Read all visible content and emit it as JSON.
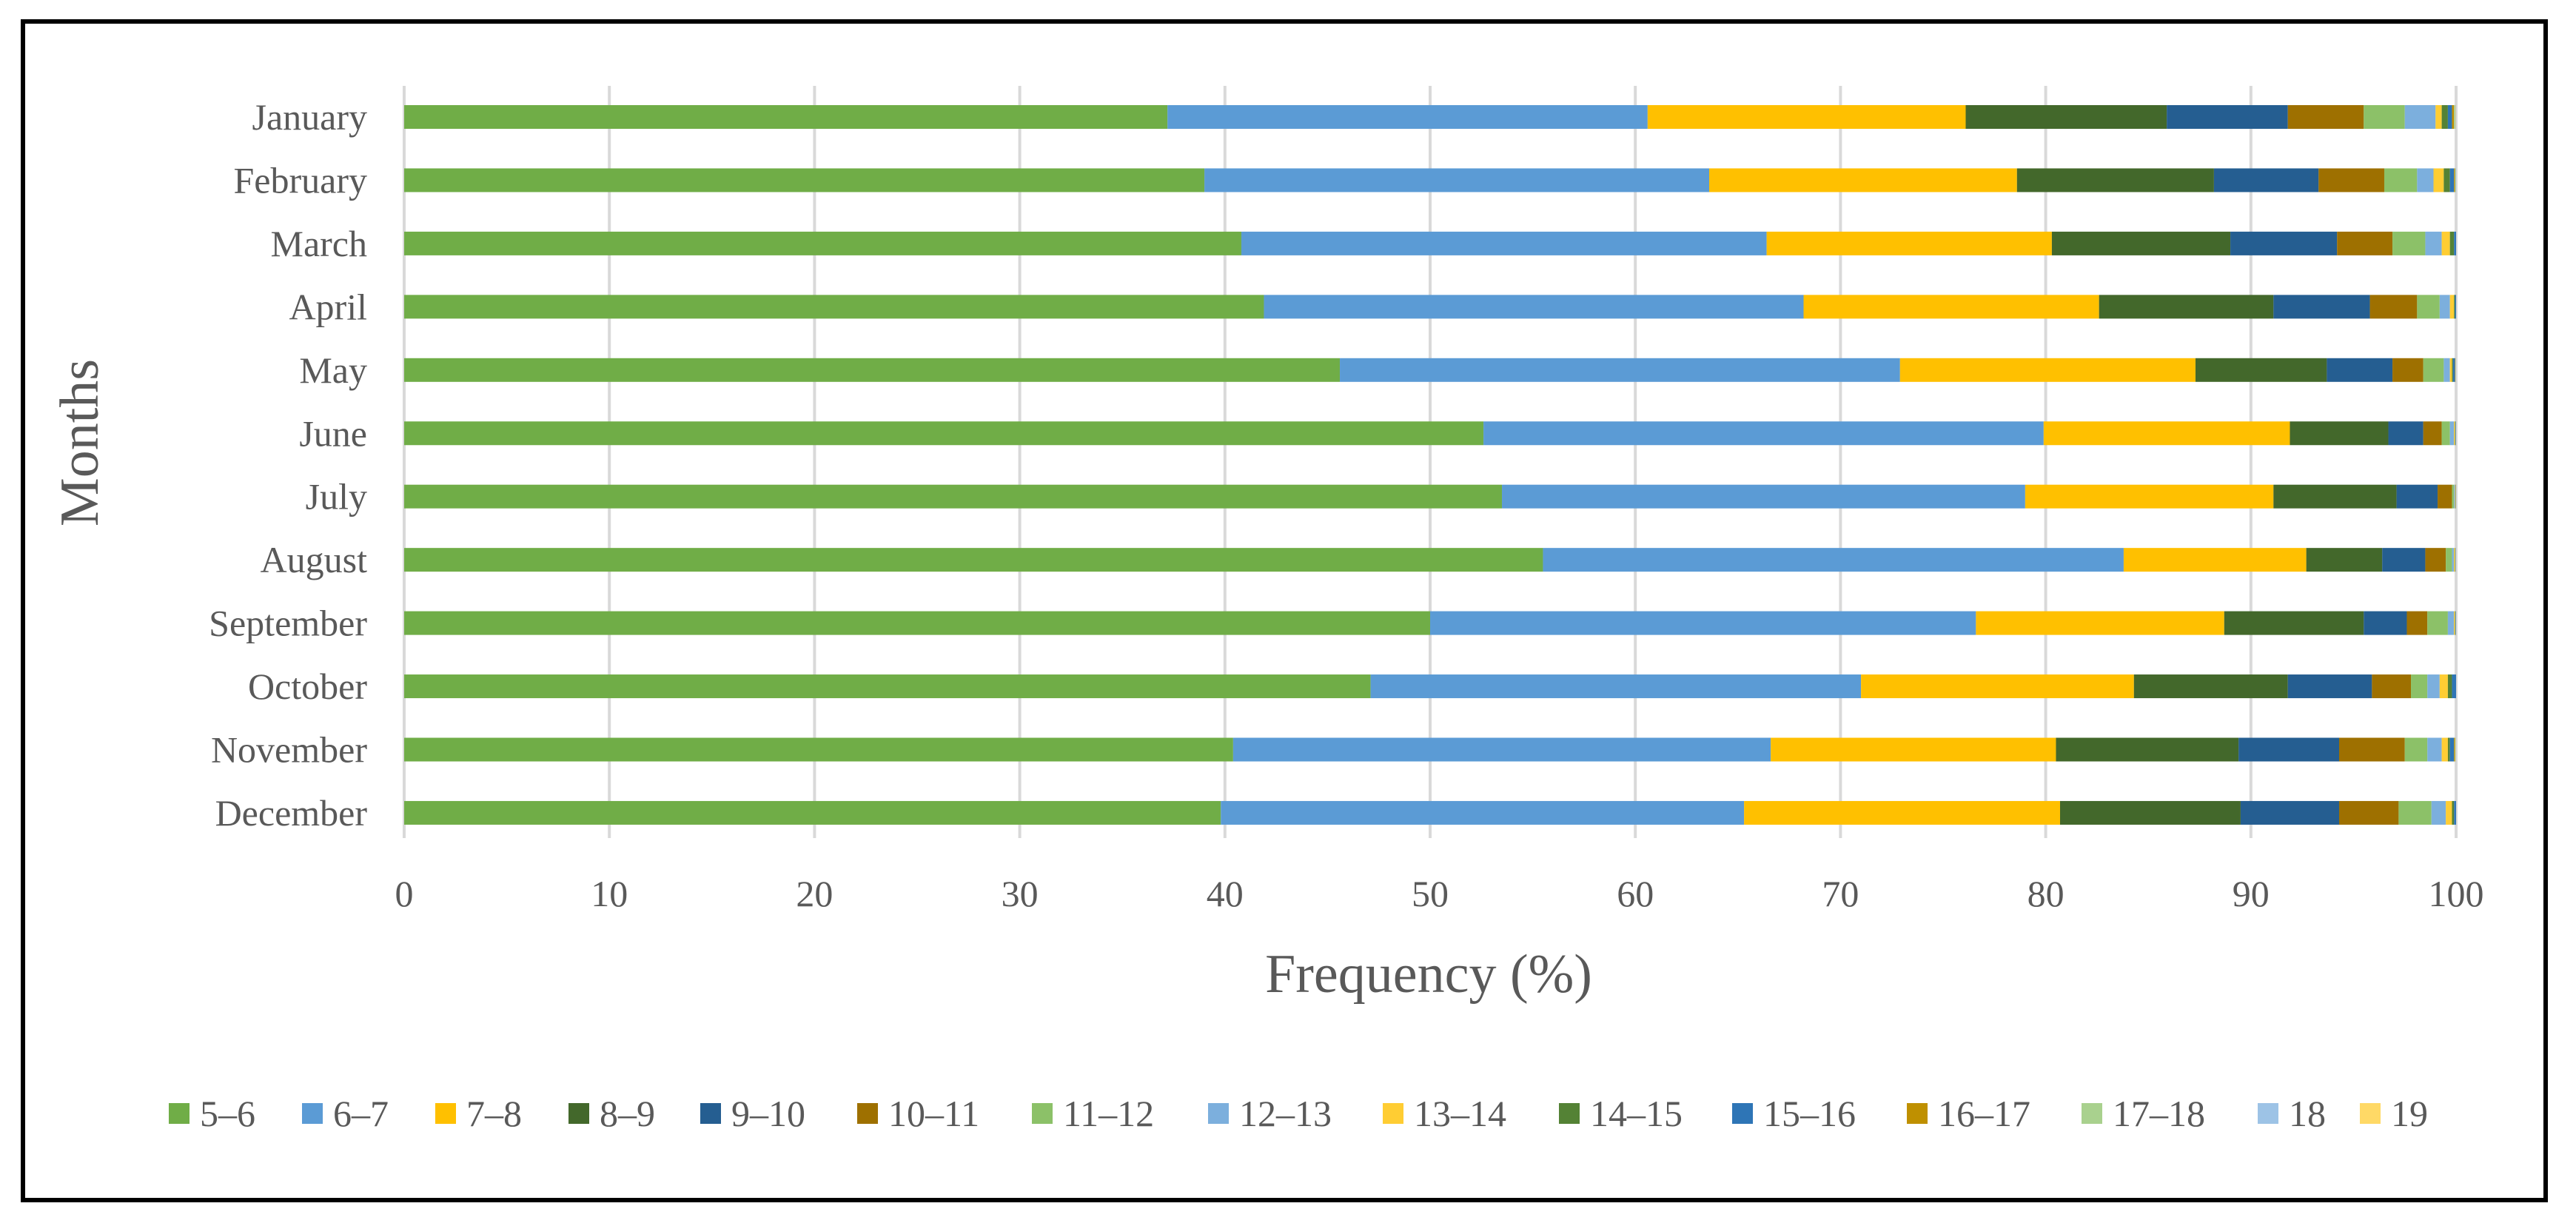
{
  "chart_data": {
    "type": "bar",
    "orientation": "horizontal",
    "stacked": true,
    "title": "",
    "xlabel": "Frequency (%)",
    "ylabel": "Months",
    "xlim": [
      0,
      100
    ],
    "xticks": [
      0,
      10,
      20,
      30,
      40,
      50,
      60,
      70,
      80,
      90,
      100
    ],
    "grid": "vertical",
    "legend_position": "bottom",
    "categories": [
      "January",
      "February",
      "March",
      "April",
      "May",
      "June",
      "July",
      "August",
      "September",
      "October",
      "November",
      "December"
    ],
    "series": [
      {
        "name": "5–6",
        "color": "#70AD47",
        "values": [
          37.2,
          39.0,
          40.8,
          41.9,
          45.6,
          52.6,
          53.5,
          55.5,
          50.0,
          47.1,
          40.4,
          39.8
        ]
      },
      {
        "name": "6–7",
        "color": "#5B9BD5",
        "values": [
          23.4,
          24.6,
          25.6,
          26.3,
          27.3,
          27.3,
          25.5,
          28.3,
          26.6,
          23.9,
          26.2,
          25.5
        ]
      },
      {
        "name": "7–8",
        "color": "#FFC000",
        "values": [
          15.5,
          15.0,
          13.9,
          14.4,
          14.4,
          12.0,
          12.1,
          8.9,
          12.1,
          13.3,
          13.9,
          15.4
        ]
      },
      {
        "name": "8–9",
        "color": "#43682B",
        "values": [
          9.8,
          9.6,
          8.7,
          8.5,
          6.4,
          4.8,
          6.0,
          3.7,
          6.8,
          7.5,
          8.9,
          8.8
        ]
      },
      {
        "name": "9–10",
        "color": "#255E91",
        "values": [
          5.9,
          5.1,
          5.2,
          4.7,
          3.2,
          1.7,
          2.0,
          2.1,
          2.1,
          4.1,
          4.9,
          4.8
        ]
      },
      {
        "name": "10–11",
        "color": "#9E7000",
        "values": [
          3.7,
          3.2,
          2.7,
          2.3,
          1.5,
          0.9,
          0.7,
          1.0,
          1.0,
          1.9,
          3.2,
          2.9
        ]
      },
      {
        "name": "11–12",
        "color": "#8CC168",
        "values": [
          2.0,
          1.6,
          1.6,
          1.1,
          1.0,
          0.4,
          0.1,
          0.3,
          1.0,
          0.8,
          1.1,
          1.6
        ]
      },
      {
        "name": "12–13",
        "color": "#7CAFDD",
        "values": [
          1.5,
          0.8,
          0.8,
          0.5,
          0.3,
          0.2,
          0.05,
          0.1,
          0.3,
          0.6,
          0.7,
          0.7
        ]
      },
      {
        "name": "13–14",
        "color": "#FFCD33",
        "values": [
          0.3,
          0.5,
          0.4,
          0.2,
          0.1,
          0.05,
          0.03,
          0.05,
          0.05,
          0.4,
          0.3,
          0.3
        ]
      },
      {
        "name": "14–15",
        "color": "#548235",
        "values": [
          0.3,
          0.3,
          0.2,
          0.05,
          0.05,
          0.02,
          0.01,
          0.02,
          0.02,
          0.2,
          0.1,
          0.1
        ]
      },
      {
        "name": "15–16",
        "color": "#2E75B6",
        "values": [
          0.2,
          0.2,
          0.1,
          0.05,
          0.1,
          0.02,
          0.01,
          0.01,
          0.02,
          0.2,
          0.2,
          0.1
        ]
      },
      {
        "name": "16–17",
        "color": "#BF9000",
        "values": [
          0.1,
          0.05,
          0.02,
          0.01,
          0.02,
          0.0,
          0.0,
          0.0,
          0.0,
          0.05,
          0.05,
          0.02
        ]
      },
      {
        "name": "17–18",
        "color": "#A9D18E",
        "values": [
          0.05,
          0.03,
          0.02,
          0.01,
          0.01,
          0.0,
          0.0,
          0.0,
          0.0,
          0.03,
          0.02,
          0.01
        ]
      },
      {
        "name": "18",
        "color": "#9DC3E6",
        "values": [
          0.03,
          0.02,
          0.01,
          0.0,
          0.0,
          0.0,
          0.0,
          0.0,
          0.0,
          0.02,
          0.01,
          0.01
        ]
      },
      {
        "name": "19",
        "color": "#FFD966",
        "values": [
          0.02,
          0.01,
          0.0,
          0.0,
          0.0,
          0.0,
          0.0,
          0.0,
          0.0,
          0.01,
          0.01,
          0.0
        ]
      }
    ]
  },
  "colors": {
    "gridline": "#D9D9D9",
    "text": "#595959",
    "frame": "#000000"
  }
}
